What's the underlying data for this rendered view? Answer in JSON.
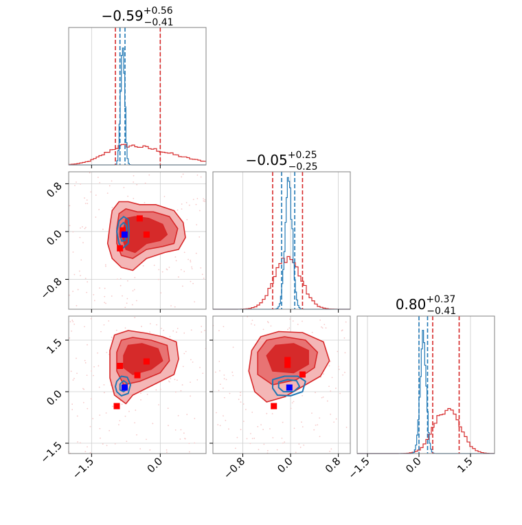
{
  "chart_data": {
    "type": "corner",
    "parameters": 3,
    "colors": {
      "posterior_a": "#d62728",
      "posterior_b": "#1f77b4",
      "marker_a": "#ff0000",
      "marker_b": "#0000ff",
      "grid": "#cccccc"
    },
    "grid": true,
    "titles": [
      {
        "median": "−0.59",
        "upper": "+0.56",
        "lower": "−0.41"
      },
      {
        "median": "−0.05",
        "upper": "+0.25",
        "lower": "−0.25"
      },
      {
        "median": "0.80",
        "upper": "+0.37",
        "lower": "−0.41"
      }
    ],
    "axes": {
      "p0": {
        "range": [
          -2.0,
          1.0
        ],
        "ticks": [
          -1.5,
          0.0
        ],
        "tick_labels": [
          "−1.5",
          "0.0"
        ]
      },
      "p1": {
        "range": [
          -1.3,
          1.0
        ],
        "ticks": [
          -0.8,
          0.0,
          0.8
        ],
        "tick_labels": [
          "−0.8",
          "0.0",
          "0.8"
        ]
      },
      "p2": {
        "range": [
          -1.8,
          2.2
        ],
        "ticks": [
          -1.5,
          0.0,
          1.5
        ],
        "tick_labels": [
          "−1.5",
          "0.0",
          "1.5"
        ]
      }
    },
    "quantiles": {
      "posterior_a": [
        [
          -0.98,
          0.0
        ],
        [
          -0.3,
          0.2
        ],
        [
          0.4,
          1.17
        ]
      ],
      "posterior_b": [
        [
          -0.88,
          -0.77
        ],
        [
          -0.15,
          0.07
        ],
        [
          0.0,
          0.25
        ]
      ]
    },
    "histograms": [
      {
        "posterior_a": {
          "center": -0.75,
          "sigma": 0.45,
          "peak": 0.14,
          "skew": 0.5
        },
        "posterior_b": {
          "center": -0.82,
          "sigma": 0.045,
          "peak": 0.88
        }
      },
      {
        "posterior_a": {
          "center": -0.05,
          "sigma": 0.22,
          "peak": 0.38
        },
        "posterior_b": {
          "center": -0.03,
          "sigma": 0.06,
          "peak": 0.92
        }
      },
      {
        "posterior_a": {
          "center": 0.82,
          "sigma": 0.37,
          "peak": 0.33
        },
        "posterior_b": {
          "center": 0.12,
          "sigma": 0.09,
          "peak": 0.82
        }
      }
    ],
    "panels_2d": [
      {
        "x": "p0",
        "y": "p1",
        "contours_a": [
          [
            [
              -1.1,
              0.1
            ],
            [
              -1.05,
              0.35
            ],
            [
              -0.9,
              0.5
            ],
            [
              -0.7,
              0.5
            ],
            [
              -0.45,
              0.45
            ],
            [
              -0.1,
              0.45
            ],
            [
              0.3,
              0.35
            ],
            [
              0.5,
              0.15
            ],
            [
              0.55,
              -0.1
            ],
            [
              0.4,
              -0.3
            ],
            [
              0.1,
              -0.35
            ],
            [
              -0.3,
              -0.45
            ],
            [
              -0.6,
              -0.65
            ],
            [
              -0.85,
              -0.6
            ],
            [
              -1.05,
              -0.45
            ],
            [
              -1.15,
              -0.2
            ]
          ],
          [
            [
              -0.95,
              0.05
            ],
            [
              -0.9,
              0.3
            ],
            [
              -0.75,
              0.38
            ],
            [
              -0.5,
              0.33
            ],
            [
              -0.15,
              0.33
            ],
            [
              0.2,
              0.25
            ],
            [
              0.38,
              0.05
            ],
            [
              0.3,
              -0.2
            ],
            [
              0.05,
              -0.25
            ],
            [
              -0.3,
              -0.3
            ],
            [
              -0.6,
              -0.45
            ],
            [
              -0.85,
              -0.4
            ],
            [
              -0.95,
              -0.2
            ]
          ],
          [
            [
              -0.8,
              0.05
            ],
            [
              -0.75,
              0.22
            ],
            [
              -0.55,
              0.25
            ],
            [
              -0.25,
              0.22
            ],
            [
              0.05,
              0.12
            ],
            [
              0.15,
              -0.05
            ],
            [
              0.0,
              -0.15
            ],
            [
              -0.3,
              -0.2
            ],
            [
              -0.55,
              -0.35
            ],
            [
              -0.75,
              -0.3
            ],
            [
              -0.82,
              -0.12
            ]
          ]
        ],
        "contours_b": [
          [
            [
              -0.9,
              0.18
            ],
            [
              -0.8,
              0.25
            ],
            [
              -0.7,
              0.2
            ],
            [
              -0.68,
              0.0
            ],
            [
              -0.7,
              -0.2
            ],
            [
              -0.82,
              -0.28
            ],
            [
              -0.9,
              -0.2
            ],
            [
              -0.95,
              0.0
            ]
          ],
          [
            [
              -0.87,
              0.1
            ],
            [
              -0.8,
              0.15
            ],
            [
              -0.74,
              0.1
            ],
            [
              -0.73,
              -0.05
            ],
            [
              -0.77,
              -0.15
            ],
            [
              -0.84,
              -0.16
            ],
            [
              -0.88,
              -0.05
            ]
          ]
        ],
        "markers_a": [
          [
            -0.45,
            0.22
          ],
          [
            -0.3,
            -0.05
          ],
          [
            -0.82,
            0.02
          ],
          [
            -0.82,
            -0.05
          ],
          [
            -0.88,
            -0.28
          ]
        ],
        "marker_b": [
          -0.78,
          -0.05
        ]
      },
      {
        "x": "p0",
        "y": "p2",
        "contours_a": [
          [
            [
              -1.1,
              1.2
            ],
            [
              -1.0,
              1.65
            ],
            [
              -0.7,
              1.78
            ],
            [
              -0.3,
              1.7
            ],
            [
              0.05,
              1.6
            ],
            [
              0.35,
              1.45
            ],
            [
              0.4,
              0.95
            ],
            [
              0.3,
              0.5
            ],
            [
              -0.3,
              0.1
            ],
            [
              -0.6,
              -0.1
            ],
            [
              -0.75,
              -0.35
            ],
            [
              -1.0,
              -0.1
            ],
            [
              -1.1,
              0.4
            ]
          ],
          [
            [
              -0.95,
              1.15
            ],
            [
              -0.85,
              1.5
            ],
            [
              -0.6,
              1.58
            ],
            [
              -0.2,
              1.5
            ],
            [
              0.15,
              1.35
            ],
            [
              0.2,
              0.9
            ],
            [
              0.0,
              0.55
            ],
            [
              -0.45,
              0.3
            ],
            [
              -0.8,
              0.2
            ],
            [
              -0.95,
              0.6
            ]
          ],
          [
            [
              -0.8,
              1.05
            ],
            [
              -0.7,
              1.35
            ],
            [
              -0.4,
              1.4
            ],
            [
              -0.05,
              1.25
            ],
            [
              0.05,
              0.9
            ],
            [
              -0.2,
              0.65
            ],
            [
              -0.6,
              0.5
            ],
            [
              -0.8,
              0.7
            ]
          ]
        ],
        "contours_b": [
          [
            [
              -0.95,
              0.3
            ],
            [
              -0.85,
              0.45
            ],
            [
              -0.72,
              0.42
            ],
            [
              -0.65,
              0.2
            ],
            [
              -0.7,
              -0.05
            ],
            [
              -0.85,
              -0.12
            ],
            [
              -0.95,
              0.0
            ],
            [
              -0.98,
              0.15
            ]
          ],
          [
            [
              -0.88,
              0.22
            ],
            [
              -0.8,
              0.32
            ],
            [
              -0.73,
              0.25
            ],
            [
              -0.72,
              0.08
            ],
            [
              -0.8,
              0.0
            ],
            [
              -0.88,
              0.05
            ]
          ]
        ],
        "markers_a": [
          [
            -0.88,
            0.75
          ],
          [
            -0.3,
            0.88
          ],
          [
            -0.5,
            0.48
          ],
          [
            -0.95,
            -0.42
          ]
        ],
        "marker_b": [
          -0.78,
          0.12
        ]
      },
      {
        "x": "p1",
        "y": "p2",
        "contours_a": [
          [
            [
              -0.65,
              1.2
            ],
            [
              -0.5,
              1.6
            ],
            [
              -0.2,
              1.75
            ],
            [
              0.2,
              1.72
            ],
            [
              0.55,
              1.45
            ],
            [
              0.65,
              0.9
            ],
            [
              0.5,
              0.45
            ],
            [
              0.2,
              0.15
            ],
            [
              -0.1,
              -0.15
            ],
            [
              -0.4,
              -0.3
            ],
            [
              -0.6,
              0.0
            ],
            [
              -0.7,
              0.6
            ]
          ],
          [
            [
              -0.55,
              1.15
            ],
            [
              -0.4,
              1.5
            ],
            [
              -0.1,
              1.6
            ],
            [
              0.25,
              1.5
            ],
            [
              0.45,
              1.15
            ],
            [
              0.4,
              0.7
            ],
            [
              0.1,
              0.35
            ],
            [
              -0.3,
              0.2
            ],
            [
              -0.55,
              0.5
            ]
          ],
          [
            [
              -0.4,
              1.05
            ],
            [
              -0.25,
              1.35
            ],
            [
              0.05,
              1.4
            ],
            [
              0.3,
              1.2
            ],
            [
              0.3,
              0.8
            ],
            [
              0.05,
              0.55
            ],
            [
              -0.3,
              0.6
            ]
          ]
        ],
        "contours_b": [
          [
            [
              -0.3,
              0.35
            ],
            [
              -0.1,
              0.45
            ],
            [
              0.12,
              0.45
            ],
            [
              0.25,
              0.3
            ],
            [
              0.2,
              0.0
            ],
            [
              0.0,
              -0.12
            ],
            [
              -0.22,
              -0.1
            ],
            [
              -0.3,
              0.1
            ]
          ],
          [
            [
              -0.2,
              0.28
            ],
            [
              -0.05,
              0.35
            ],
            [
              0.1,
              0.32
            ],
            [
              0.15,
              0.15
            ],
            [
              0.05,
              0.0
            ],
            [
              -0.12,
              0.0
            ],
            [
              -0.2,
              0.12
            ]
          ]
        ],
        "markers_a": [
          [
            -0.05,
            0.92
          ],
          [
            -0.05,
            0.78
          ],
          [
            0.2,
            0.5
          ],
          [
            -0.28,
            -0.42
          ]
        ],
        "marker_b": [
          -0.02,
          0.12
        ]
      }
    ]
  }
}
